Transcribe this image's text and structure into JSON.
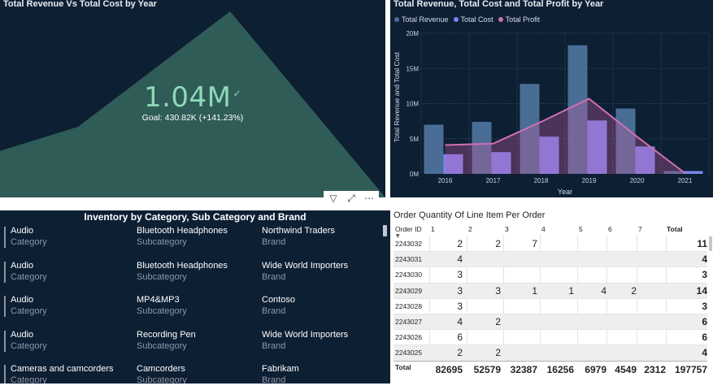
{
  "kpi": {
    "title": "Total Revenue Vs Total Cost by Year",
    "value": "1.04M",
    "goal": "Goal: 430.82K (+141.23%)",
    "area_color": "#2f5c56",
    "value_color": "#8fd8b8",
    "trend": [
      0.25,
      0.38,
      1.0,
      0.0
    ]
  },
  "combo": {
    "title": "Total Revenue, Total Cost and Total Profit by Year",
    "xlabel": "Year",
    "ylabel": "Total Revenue and Total Cost",
    "legend": [
      {
        "name": "Total Revenue",
        "color": "#4a6d96"
      },
      {
        "name": "Total Cost",
        "color": "#7b86f0"
      },
      {
        "name": "Total Profit",
        "color": "#d070b0"
      }
    ],
    "yticks": [
      "0M",
      "5M",
      "10M",
      "15M",
      "20M"
    ]
  },
  "chart_data": {
    "type": "bar",
    "title": "Total Revenue, Total Cost and Total Profit by Year",
    "xlabel": "Year",
    "ylabel": "Total Revenue and Total Cost",
    "categories": [
      "2016",
      "2017",
      "2018",
      "2019",
      "2020",
      "2021"
    ],
    "ylim": [
      0,
      20
    ],
    "series": [
      {
        "name": "Total Revenue",
        "type": "bar",
        "values": [
          7.0,
          7.4,
          12.8,
          18.3,
          9.3,
          0.4
        ]
      },
      {
        "name": "Total Cost",
        "type": "bar",
        "values": [
          2.8,
          3.1,
          5.3,
          7.6,
          3.9,
          0.4
        ]
      },
      {
        "name": "Total Profit",
        "type": "line",
        "values": [
          4.1,
          4.3,
          7.4,
          10.7,
          5.3,
          0.1
        ]
      }
    ],
    "grid": true,
    "legend": "top-left"
  },
  "toolbar": {
    "filter_icon": "▽",
    "focus_icon": "⤢",
    "more_icon": "⋯"
  },
  "inventory": {
    "title": "Inventory by Category, Sub Category and Brand",
    "labels": {
      "category": "Category",
      "subcategory": "Subcategory",
      "brand": "Brand"
    },
    "rows": [
      {
        "category": "Audio",
        "subcategory": "Bluetooth Headphones",
        "brand": "Northwind Traders"
      },
      {
        "category": "Audio",
        "subcategory": "Bluetooth Headphones",
        "brand": "Wide World Importers"
      },
      {
        "category": "Audio",
        "subcategory": "MP4&MP3",
        "brand": "Contoso"
      },
      {
        "category": "Audio",
        "subcategory": "Recording Pen",
        "brand": "Wide World Importers"
      },
      {
        "category": "Cameras and camcorders",
        "subcategory": "Camcorders",
        "brand": "Fabrikam"
      }
    ]
  },
  "matrix": {
    "title": "Order Quantity Of Line Item Per Order",
    "row_header": "Order ID",
    "columns": [
      "1",
      "2",
      "3",
      "4",
      "5",
      "6",
      "7",
      "Total"
    ],
    "rows": [
      {
        "id": "2243032",
        "cells": [
          "2",
          "2",
          "7",
          "",
          "",
          "",
          "",
          "11"
        ]
      },
      {
        "id": "2243031",
        "cells": [
          "4",
          "",
          "",
          "",
          "",
          "",
          "",
          "4"
        ]
      },
      {
        "id": "2243030",
        "cells": [
          "3",
          "",
          "",
          "",
          "",
          "",
          "",
          "3"
        ]
      },
      {
        "id": "2243029",
        "cells": [
          "3",
          "3",
          "1",
          "1",
          "4",
          "2",
          "",
          "14"
        ]
      },
      {
        "id": "2243028",
        "cells": [
          "3",
          "",
          "",
          "",
          "",
          "",
          "",
          "3"
        ]
      },
      {
        "id": "2243027",
        "cells": [
          "4",
          "2",
          "",
          "",
          "",
          "",
          "",
          "6"
        ]
      },
      {
        "id": "2243026",
        "cells": [
          "6",
          "",
          "",
          "",
          "",
          "",
          "",
          "6"
        ]
      },
      {
        "id": "2243025",
        "cells": [
          "2",
          "2",
          "",
          "",
          "",
          "",
          "",
          "4"
        ]
      }
    ],
    "total_label": "Total",
    "totals": [
      "82695",
      "52579",
      "32387",
      "16256",
      "6979",
      "4549",
      "2312",
      "197757"
    ]
  }
}
